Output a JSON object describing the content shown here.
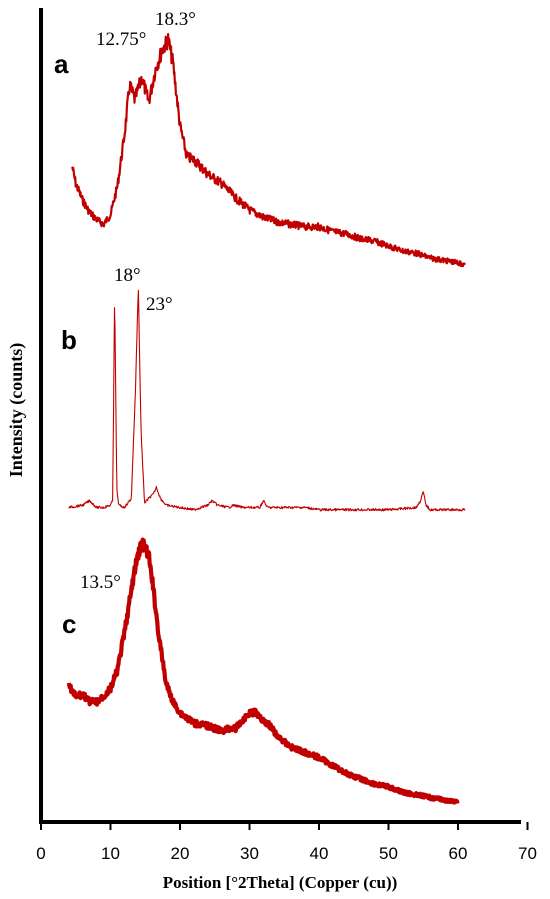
{
  "chart_data": {
    "type": "line",
    "xlabel": "Position [°2Theta] (Copper (cu))",
    "ylabel": "Intensity (counts)",
    "xlim": [
      0,
      70
    ],
    "x_ticks": [
      "0",
      "10",
      "20",
      "30",
      "40",
      "50",
      "60",
      "70"
    ],
    "grid": false,
    "line_color": "#c00000",
    "series": [
      {
        "name": "a",
        "x": [
          4.5,
          5,
          6,
          7,
          8,
          9,
          10,
          11,
          12,
          12.75,
          13.5,
          14.5,
          15.5,
          16.5,
          17.5,
          18.3,
          19,
          20,
          21,
          22,
          24,
          26,
          28,
          30,
          32,
          34,
          36,
          38,
          40,
          42,
          44,
          46,
          48,
          50,
          52,
          54,
          56,
          58,
          60,
          61
        ],
        "y": [
          0.43,
          0.36,
          0.29,
          0.24,
          0.21,
          0.19,
          0.23,
          0.35,
          0.56,
          0.77,
          0.71,
          0.8,
          0.7,
          0.84,
          0.92,
          0.96,
          0.86,
          0.6,
          0.47,
          0.46,
          0.4,
          0.36,
          0.3,
          0.25,
          0.22,
          0.2,
          0.19,
          0.18,
          0.18,
          0.16,
          0.15,
          0.13,
          0.12,
          0.1,
          0.08,
          0.07,
          0.05,
          0.04,
          0.03,
          0.02
        ]
      },
      {
        "name": "b",
        "x": [
          4,
          6,
          7,
          8,
          9,
          10,
          10.3,
          10.6,
          10.9,
          11.2,
          12,
          13,
          13.6,
          14.0,
          14.4,
          14.9,
          15.5,
          16.2,
          16.6,
          17.2,
          18,
          20,
          22,
          24,
          24.6,
          25.4,
          27,
          27.7,
          29,
          31.5,
          32,
          32.6,
          35,
          38,
          40,
          45,
          50,
          54,
          54.6,
          55.0,
          55.4,
          56,
          60,
          61
        ],
        "y": [
          0.02,
          0.03,
          0.05,
          0.02,
          0.02,
          0.03,
          0.05,
          0.96,
          0.1,
          0.03,
          0.02,
          0.06,
          0.55,
          1.0,
          0.35,
          0.04,
          0.06,
          0.08,
          0.11,
          0.06,
          0.03,
          0.02,
          0.01,
          0.03,
          0.05,
          0.03,
          0.02,
          0.03,
          0.02,
          0.02,
          0.05,
          0.02,
          0.02,
          0.02,
          0.01,
          0.01,
          0.01,
          0.02,
          0.05,
          0.09,
          0.03,
          0.01,
          0.01,
          0.01
        ]
      },
      {
        "name": "c",
        "x": [
          4,
          5,
          6,
          7,
          8,
          9,
          10,
          11,
          12,
          13,
          13.5,
          14,
          14.5,
          15,
          15.5,
          16,
          17,
          18,
          19,
          20,
          22,
          24,
          26,
          27,
          28,
          29,
          30,
          31,
          32,
          33,
          34,
          36,
          38,
          40,
          42,
          44,
          46,
          48,
          50,
          52,
          54,
          56,
          58,
          60
        ],
        "y": [
          0.46,
          0.42,
          0.43,
          0.4,
          0.4,
          0.42,
          0.45,
          0.52,
          0.66,
          0.82,
          0.9,
          0.96,
          1.0,
          0.98,
          0.95,
          0.86,
          0.64,
          0.47,
          0.4,
          0.36,
          0.32,
          0.31,
          0.29,
          0.3,
          0.3,
          0.33,
          0.36,
          0.36,
          0.33,
          0.31,
          0.27,
          0.23,
          0.21,
          0.19,
          0.16,
          0.13,
          0.11,
          0.09,
          0.08,
          0.06,
          0.05,
          0.04,
          0.03,
          0.02
        ]
      }
    ],
    "panel_labels": [
      "a",
      "b",
      "c"
    ],
    "annotations": [
      {
        "series": "a",
        "text": "12.75°"
      },
      {
        "series": "a",
        "text": "18.3°"
      },
      {
        "series": "b",
        "text": "18°"
      },
      {
        "series": "b",
        "text": "23°"
      },
      {
        "series": "c",
        "text": "13.5°"
      }
    ]
  }
}
